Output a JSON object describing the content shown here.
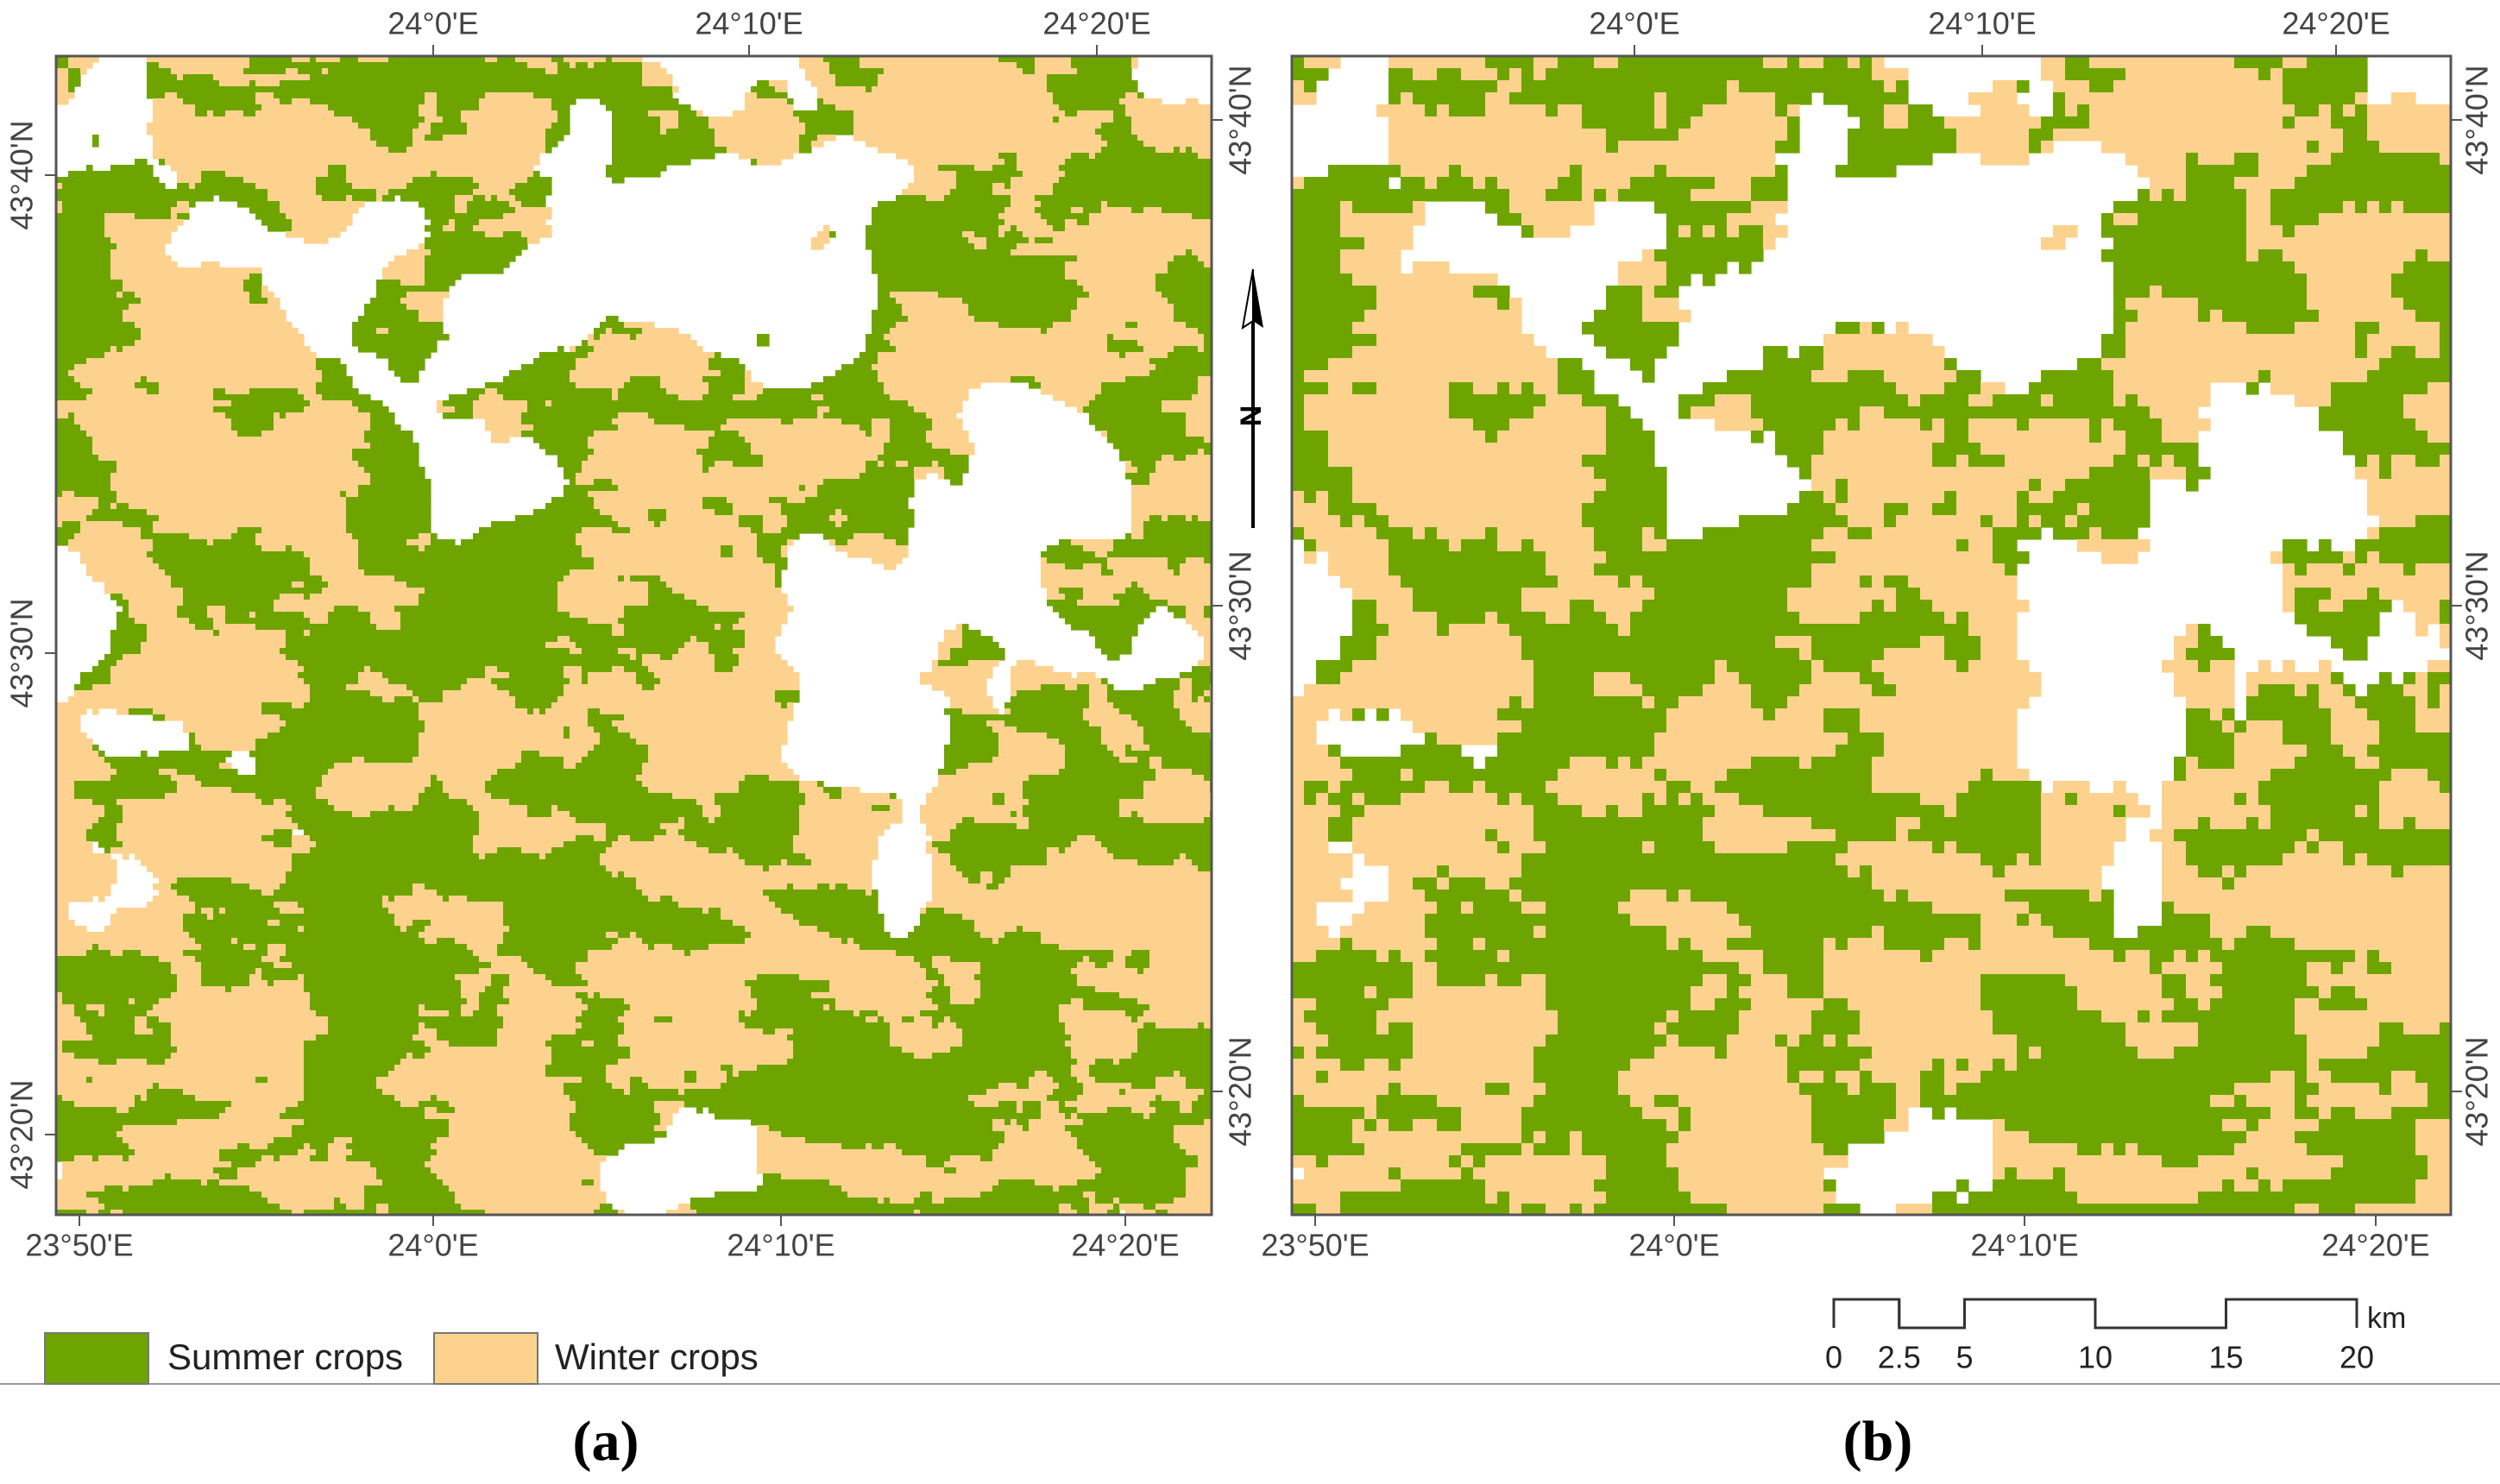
{
  "panels": [
    {
      "label": "(a)",
      "top_labels": [
        "24°0'E",
        "24°10'E",
        "24°20'E"
      ],
      "bottom_labels": [
        "23°50'E",
        "24°0'E",
        "24°10'E",
        "24°20'E"
      ],
      "left_labels": [
        "43°40'N",
        "43°30'N",
        "43°20'N"
      ],
      "right_labels": [
        "43°40'N",
        "43°30'N",
        "43°20'N"
      ]
    },
    {
      "label": "(b)",
      "top_labels": [
        "24°0'E",
        "24°10'E",
        "24°20'E"
      ],
      "bottom_labels": [
        "23°50'E",
        "24°0'E",
        "24°10'E",
        "24°20'E"
      ],
      "right_labels": [
        "43°40'N",
        "43°30'N",
        "43°20'N"
      ]
    }
  ],
  "legend": [
    {
      "label": "Summer crops",
      "color": "#6ea400"
    },
    {
      "label": "Winter crops",
      "color": "#fdd28e"
    }
  ],
  "north_arrow": "N",
  "scale_bar": {
    "unit": "km",
    "ticks": [
      0,
      2.5,
      5,
      10,
      15,
      20
    ]
  }
}
